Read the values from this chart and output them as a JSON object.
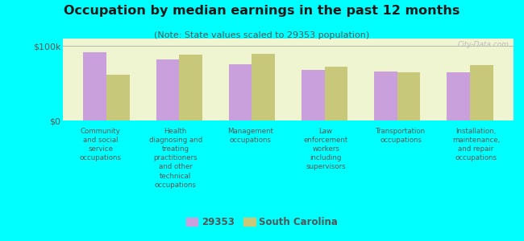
{
  "title": "Occupation by median earnings in the past 12 months",
  "subtitle": "(Note: State values scaled to 29353 population)",
  "categories": [
    "Community\nand social\nservice\noccupations",
    "Health\ndiagnosing and\ntreating\npractitioners\nand other\ntechnical\noccupations",
    "Management\noccupations",
    "Law\nenforcement\nworkers\nincluding\nsupervisors",
    "Transportation\noccupations",
    "Installation,\nmaintenance,\nand repair\noccupations"
  ],
  "values_29353": [
    92000,
    82000,
    76000,
    68000,
    66000,
    65000
  ],
  "values_sc": [
    62000,
    88000,
    90000,
    72000,
    65000,
    74000
  ],
  "color_29353": "#c9a0dc",
  "color_sc": "#c8c87a",
  "ylim": [
    0,
    110000
  ],
  "yticks": [
    0,
    100000
  ],
  "ytick_labels": [
    "$0",
    "$100k"
  ],
  "plot_bg_color": "#eef5d0",
  "outer_background": "#00ffff",
  "legend_label_29353": "29353",
  "legend_label_sc": "South Carolina",
  "watermark": "City-Data.com",
  "title_color": "#1a1a1a",
  "subtitle_color": "#555555",
  "label_color": "#555555"
}
